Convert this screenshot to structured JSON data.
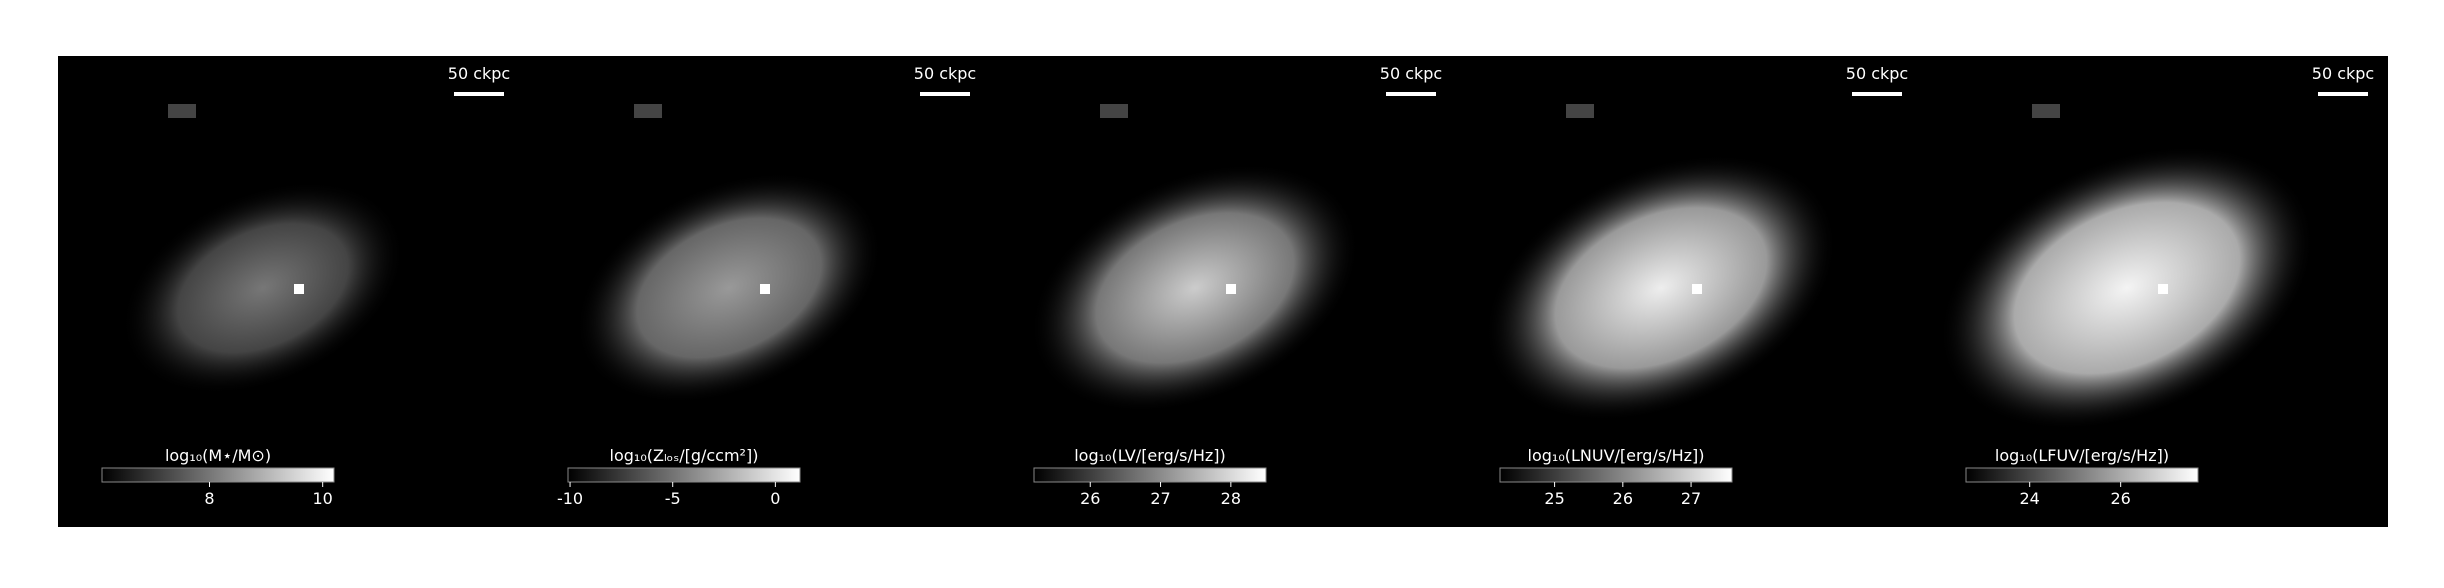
{
  "chart_data": [
    {
      "type": "image",
      "scale_bar_label": "50 ckpc",
      "colorbar_label": "log₁₀(M⋆/M⊙)",
      "clim": [
        6.1,
        10.2
      ],
      "cticks": [
        8,
        10
      ]
    },
    {
      "type": "image",
      "scale_bar_label": "50 ckpc",
      "colorbar_label": "log₁₀(Zₗₒₛ/[g/ccm²])",
      "clim": [
        -10.1,
        1.2
      ],
      "cticks": [
        -10,
        -5,
        0
      ]
    },
    {
      "type": "image",
      "scale_bar_label": "50 ckpc",
      "colorbar_label": "log₁₀(LV/[erg/s/Hz])",
      "clim": [
        25.2,
        28.5
      ],
      "cticks": [
        26,
        27,
        28
      ]
    },
    {
      "type": "image",
      "scale_bar_label": "50 ckpc",
      "colorbar_label": "log₁₀(LNUV/[erg/s/Hz])",
      "clim": [
        24.2,
        27.6
      ],
      "cticks": [
        25,
        26,
        27
      ]
    },
    {
      "type": "image",
      "scale_bar_label": "50 ckpc",
      "colorbar_label": "log₁₀(LFUV/[erg/s/Hz])",
      "clim": [
        22.6,
        27.7
      ],
      "cticks": [
        24,
        26
      ]
    }
  ]
}
